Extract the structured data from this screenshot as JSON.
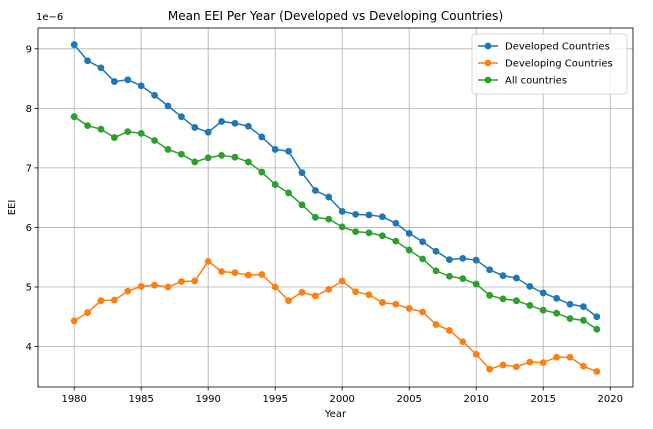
{
  "chart_data": {
    "type": "line",
    "title": "Mean EEI Per Year (Developed vs Developing Countries)",
    "xlabel": "Year",
    "ylabel": "EEI",
    "y_offset_label": "1e−6",
    "y_scale_factor": 1e-06,
    "xlim": [
      1977.3,
      2021.7
    ],
    "ylim": [
      3.32,
      9.35
    ],
    "x_ticks": [
      1980,
      1985,
      1990,
      1995,
      2000,
      2005,
      2010,
      2015,
      2020
    ],
    "y_ticks": [
      4,
      5,
      6,
      7,
      8,
      9
    ],
    "grid": true,
    "legend_position": "top-right",
    "x": [
      1980,
      1981,
      1982,
      1983,
      1984,
      1985,
      1986,
      1987,
      1988,
      1989,
      1990,
      1991,
      1992,
      1993,
      1994,
      1995,
      1996,
      1997,
      1998,
      1999,
      2000,
      2001,
      2002,
      2003,
      2004,
      2005,
      2006,
      2007,
      2008,
      2009,
      2010,
      2011,
      2012,
      2013,
      2014,
      2015,
      2016,
      2017,
      2018,
      2019
    ],
    "series": [
      {
        "name": "Developed Countries",
        "color": "#1f77b4",
        "values": [
          9.07,
          8.8,
          8.68,
          8.45,
          8.48,
          8.38,
          8.22,
          8.04,
          7.86,
          7.68,
          7.6,
          7.78,
          7.75,
          7.7,
          7.52,
          7.31,
          7.28,
          6.92,
          6.62,
          6.51,
          6.27,
          6.22,
          6.21,
          6.18,
          6.07,
          5.9,
          5.76,
          5.6,
          5.46,
          5.48,
          5.45,
          5.29,
          5.19,
          5.15,
          5.01,
          4.9,
          4.81,
          4.71,
          4.67,
          4.5
        ]
      },
      {
        "name": "Developing Countries",
        "color": "#ff7f0e",
        "values": [
          4.43,
          4.57,
          4.77,
          4.78,
          4.93,
          5.01,
          5.03,
          5.0,
          5.09,
          5.1,
          5.43,
          5.26,
          5.24,
          5.2,
          5.21,
          5.0,
          4.77,
          4.91,
          4.85,
          4.96,
          5.1,
          4.92,
          4.87,
          4.74,
          4.71,
          4.64,
          4.58,
          4.37,
          4.27,
          4.08,
          3.87,
          3.62,
          3.69,
          3.66,
          3.74,
          3.73,
          3.82,
          3.82,
          3.67,
          3.58
        ]
      },
      {
        "name": "All countries",
        "color": "#2ca02c",
        "values": [
          7.86,
          7.71,
          7.65,
          7.51,
          7.61,
          7.58,
          7.46,
          7.31,
          7.23,
          7.1,
          7.17,
          7.21,
          7.18,
          7.1,
          6.93,
          6.72,
          6.58,
          6.38,
          6.17,
          6.14,
          6.01,
          5.93,
          5.91,
          5.86,
          5.77,
          5.62,
          5.47,
          5.27,
          5.18,
          5.14,
          5.05,
          4.86,
          4.8,
          4.77,
          4.69,
          4.61,
          4.56,
          4.47,
          4.44,
          4.29
        ]
      }
    ]
  }
}
